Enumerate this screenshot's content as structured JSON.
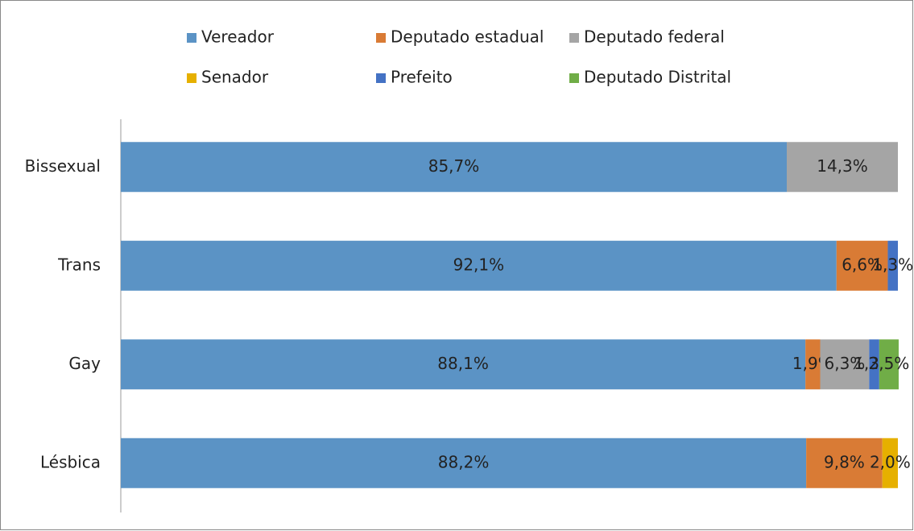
{
  "chart_data": {
    "type": "stacked-barh",
    "categories": [
      "Bissexual",
      "Trans",
      "Gay",
      "Lésbica"
    ],
    "xlim": [
      0,
      100
    ],
    "series": [
      {
        "name": "Vereador",
        "color": "#5b93c5",
        "values": [
          85.7,
          92.1,
          88.1,
          88.2
        ],
        "value_labels": [
          "85,7%",
          "92,1%",
          "88,1%",
          "88,2%"
        ]
      },
      {
        "name": "Deputado estadual",
        "color": "#d97b35",
        "values": [
          null,
          6.6,
          1.9,
          9.8
        ],
        "value_labels": [
          null,
          "6,6%",
          "1,9%",
          "9,8%"
        ]
      },
      {
        "name": "Deputado federal",
        "color": "#a5a5a5",
        "values": [
          14.3,
          null,
          6.3,
          null
        ],
        "value_labels": [
          "14,3%",
          null,
          "6,3%",
          null
        ]
      },
      {
        "name": "Senador",
        "color": "#e6b000",
        "values": [
          null,
          null,
          null,
          2.0
        ],
        "value_labels": [
          null,
          null,
          null,
          "2,0%"
        ]
      },
      {
        "name": "Prefeito",
        "color": "#4472c4",
        "values": [
          null,
          1.3,
          1.3,
          null
        ],
        "value_labels": [
          null,
          "1,3%",
          "1,3%",
          null
        ]
      },
      {
        "name": "Deputado Distrital",
        "color": "#70ad47",
        "values": [
          null,
          null,
          2.5,
          null
        ],
        "value_labels": [
          null,
          null,
          "2,5%",
          null
        ]
      }
    ]
  }
}
